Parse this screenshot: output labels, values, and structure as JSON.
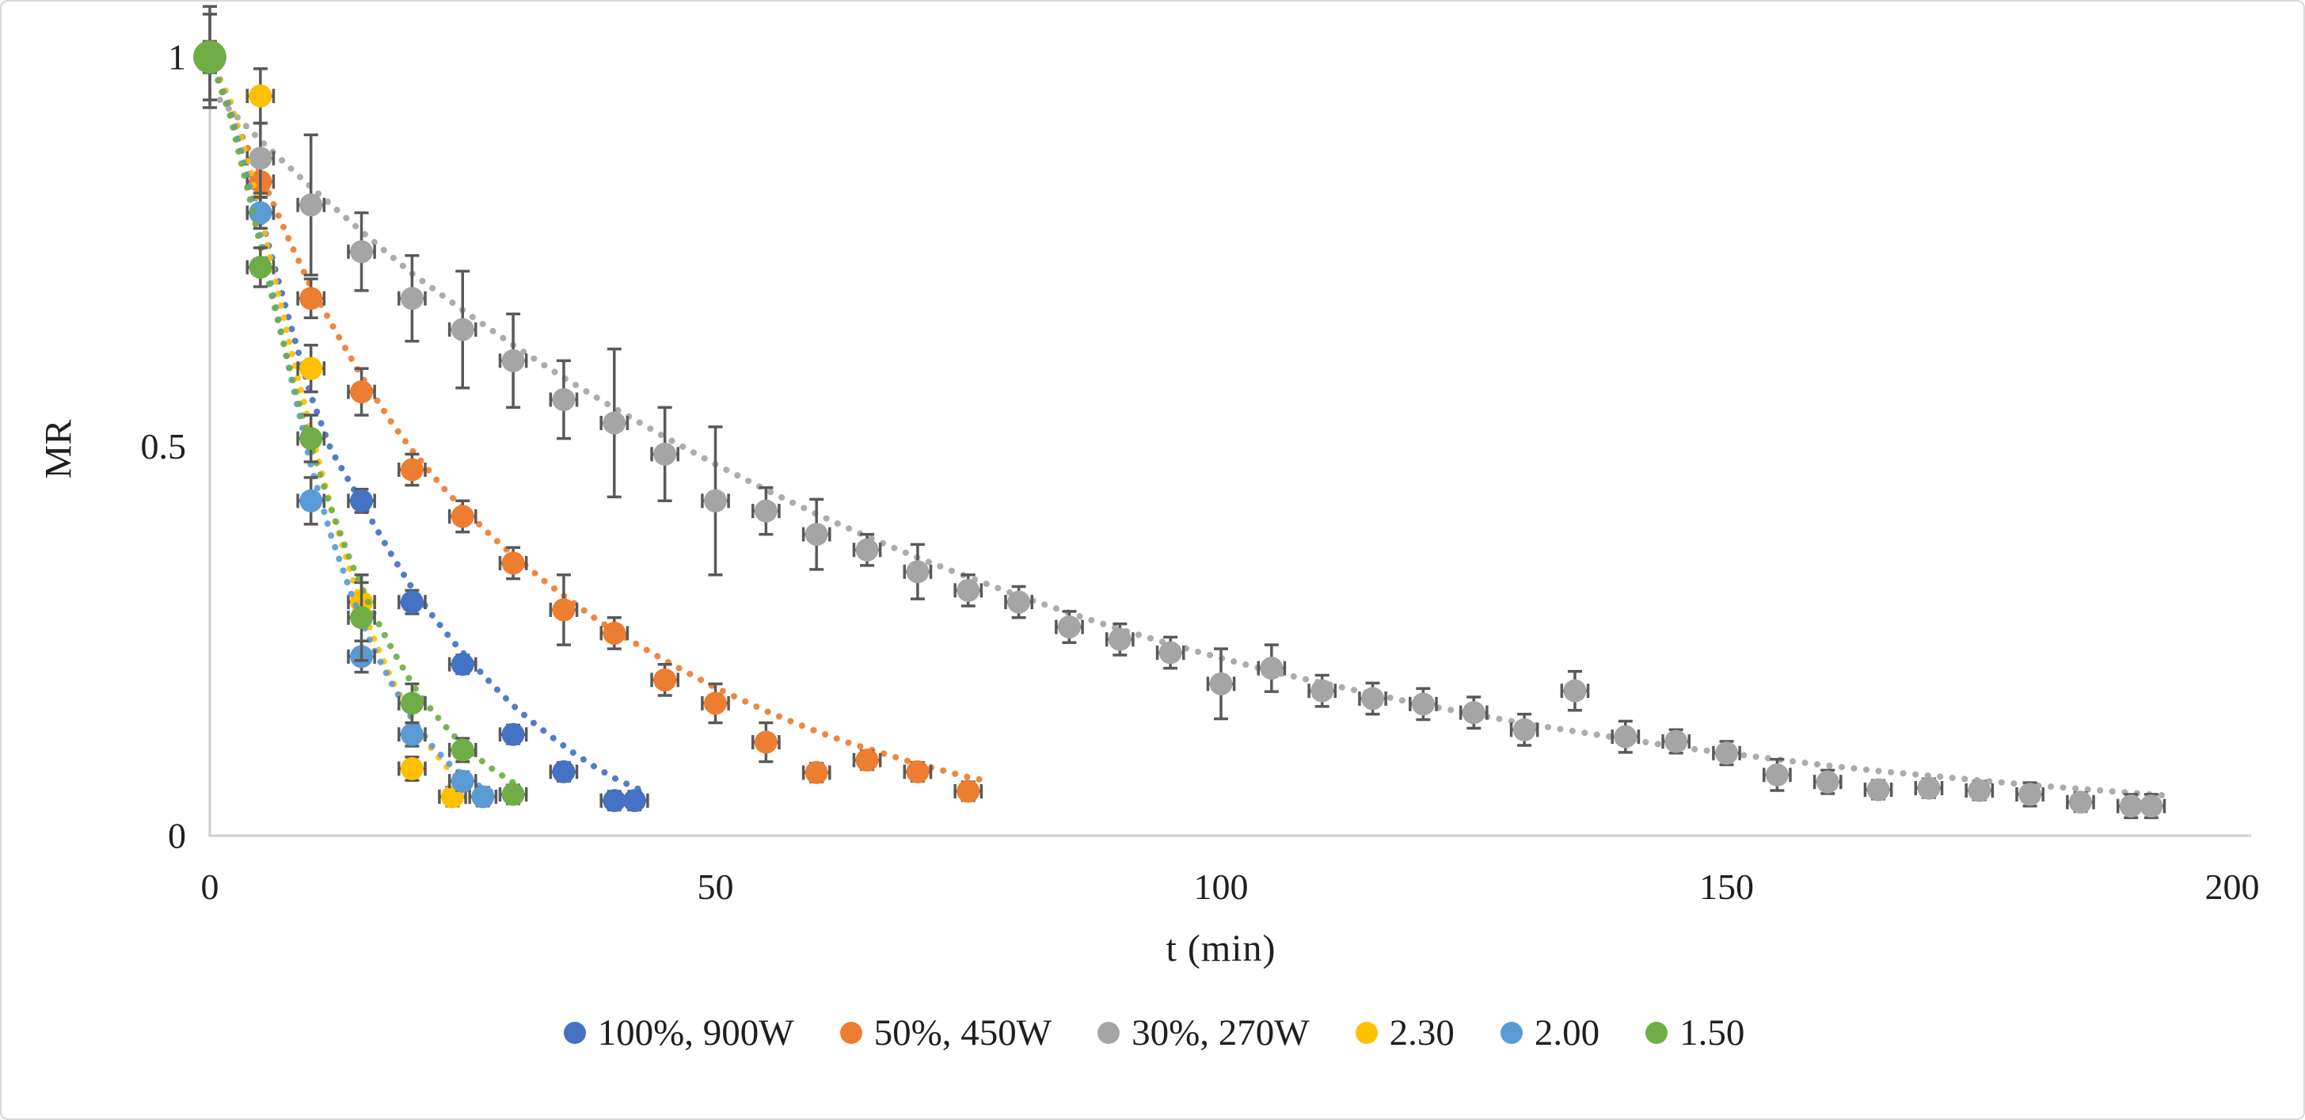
{
  "ui": {
    "x_axis_title": "t (min)",
    "y_axis_title": "MR"
  },
  "chart_data": {
    "type": "scatter",
    "title": "",
    "xlabel": "t (min)",
    "ylabel": "MR",
    "xlim": [
      0,
      200
    ],
    "ylim": [
      0,
      1
    ],
    "x_ticks": [
      {
        "value": 0,
        "label": "0"
      },
      {
        "value": 50,
        "label": "50"
      },
      {
        "value": 100,
        "label": "100"
      },
      {
        "value": 150,
        "label": "150"
      },
      {
        "value": 200,
        "label": "200"
      }
    ],
    "y_ticks": [
      {
        "value": 0,
        "label": "0"
      },
      {
        "value": 0.5,
        "label": "0.5"
      },
      {
        "value": 1,
        "label": "1"
      }
    ],
    "grid": false,
    "legend_position": "bottom-center",
    "axis_color": "#cfcfcf",
    "error_bar_color": "#595959",
    "x_error_minutes": 1.3,
    "series": [
      {
        "name": "100%, 900W",
        "color": "#4472C4",
        "marker": "circle",
        "points": [
          [
            0,
            1,
            0.02
          ],
          [
            5,
            0.8,
            0.02
          ],
          [
            15,
            0.43,
            0.015
          ],
          [
            20,
            0.3,
            0.015
          ],
          [
            25,
            0.22,
            0.012
          ],
          [
            30,
            0.13,
            0.012
          ],
          [
            35,
            0.082,
            0.012
          ],
          [
            40,
            0.045,
            0.012
          ],
          [
            42,
            0.045,
            0.012
          ]
        ],
        "trend": [
          [
            0,
            1
          ],
          [
            2,
            0.93
          ],
          [
            4,
            0.845
          ],
          [
            6,
            0.75
          ],
          [
            8,
            0.655
          ],
          [
            10,
            0.565
          ],
          [
            12,
            0.495
          ],
          [
            14,
            0.45
          ],
          [
            16,
            0.405
          ],
          [
            18,
            0.36
          ],
          [
            20,
            0.318
          ],
          [
            22,
            0.283
          ],
          [
            24,
            0.25
          ],
          [
            26,
            0.221
          ],
          [
            28,
            0.193
          ],
          [
            30,
            0.167
          ],
          [
            32,
            0.145
          ],
          [
            34,
            0.125
          ],
          [
            36,
            0.106
          ],
          [
            38,
            0.089
          ],
          [
            40,
            0.074
          ],
          [
            42,
            0.062
          ],
          [
            43,
            0.057
          ]
        ]
      },
      {
        "name": "50%, 450W",
        "color": "#ED7D31",
        "marker": "circle",
        "points": [
          [
            0,
            1,
            0.02
          ],
          [
            5,
            0.84,
            0.02
          ],
          [
            10,
            0.69,
            0.025
          ],
          [
            15,
            0.57,
            0.03
          ],
          [
            20,
            0.47,
            0.02
          ],
          [
            25,
            0.41,
            0.02
          ],
          [
            30,
            0.35,
            0.02
          ],
          [
            35,
            0.29,
            0.045
          ],
          [
            40,
            0.26,
            0.02
          ],
          [
            45,
            0.2,
            0.02
          ],
          [
            50,
            0.17,
            0.025
          ],
          [
            55,
            0.12,
            0.025
          ],
          [
            60,
            0.081,
            0.012
          ],
          [
            65,
            0.097,
            0.012
          ],
          [
            70,
            0.082,
            0.012
          ],
          [
            75,
            0.057,
            0.012
          ]
        ],
        "trend": [
          [
            0,
            1
          ],
          [
            2,
            0.93
          ],
          [
            5,
            0.85
          ],
          [
            8,
            0.76
          ],
          [
            10,
            0.705
          ],
          [
            13,
            0.635
          ],
          [
            15,
            0.59
          ],
          [
            18,
            0.53
          ],
          [
            20,
            0.495
          ],
          [
            23,
            0.448
          ],
          [
            25,
            0.42
          ],
          [
            28,
            0.383
          ],
          [
            30,
            0.36
          ],
          [
            33,
            0.328
          ],
          [
            35,
            0.308
          ],
          [
            38,
            0.28
          ],
          [
            40,
            0.263
          ],
          [
            43,
            0.24
          ],
          [
            45,
            0.225
          ],
          [
            48,
            0.204
          ],
          [
            50,
            0.19
          ],
          [
            53,
            0.172
          ],
          [
            55,
            0.16
          ],
          [
            58,
            0.144
          ],
          [
            60,
            0.134
          ],
          [
            63,
            0.12
          ],
          [
            65,
            0.112
          ],
          [
            68,
            0.1
          ],
          [
            70,
            0.092
          ],
          [
            73,
            0.082
          ],
          [
            75,
            0.075
          ],
          [
            77,
            0.07
          ]
        ]
      },
      {
        "name": "30%, 270W",
        "color": "#A5A5A5",
        "marker": "circle",
        "points": [
          [
            0,
            1,
            0.065
          ],
          [
            5,
            0.87,
            0.045
          ],
          [
            10,
            0.81,
            0.09
          ],
          [
            15,
            0.75,
            0.05
          ],
          [
            20,
            0.69,
            0.055
          ],
          [
            25,
            0.65,
            0.075
          ],
          [
            30,
            0.61,
            0.06
          ],
          [
            35,
            0.56,
            0.05
          ],
          [
            40,
            0.53,
            0.095
          ],
          [
            45,
            0.49,
            0.06
          ],
          [
            50,
            0.43,
            0.095
          ],
          [
            55,
            0.417,
            0.03
          ],
          [
            60,
            0.387,
            0.045
          ],
          [
            65,
            0.367,
            0.02
          ],
          [
            70,
            0.339,
            0.035
          ],
          [
            75,
            0.315,
            0.02
          ],
          [
            80,
            0.3,
            0.02
          ],
          [
            85,
            0.268,
            0.02
          ],
          [
            90,
            0.252,
            0.02
          ],
          [
            95,
            0.235,
            0.02
          ],
          [
            100,
            0.195,
            0.045
          ],
          [
            105,
            0.215,
            0.03
          ],
          [
            110,
            0.186,
            0.02
          ],
          [
            115,
            0.176,
            0.02
          ],
          [
            120,
            0.169,
            0.02
          ],
          [
            125,
            0.158,
            0.02
          ],
          [
            130,
            0.136,
            0.02
          ],
          [
            135,
            0.186,
            0.025
          ],
          [
            140,
            0.127,
            0.02
          ],
          [
            145,
            0.121,
            0.015
          ],
          [
            150,
            0.106,
            0.015
          ],
          [
            155,
            0.078,
            0.02
          ],
          [
            160,
            0.069,
            0.015
          ],
          [
            165,
            0.059,
            0.012
          ],
          [
            170,
            0.061,
            0.012
          ],
          [
            175,
            0.058,
            0.012
          ],
          [
            180,
            0.053,
            0.015
          ],
          [
            185,
            0.043,
            0.012
          ],
          [
            190,
            0.038,
            0.015
          ],
          [
            192,
            0.038,
            0.015
          ]
        ],
        "trend": [
          [
            1,
            0.945
          ],
          [
            5,
            0.893
          ],
          [
            10,
            0.833
          ],
          [
            15,
            0.776
          ],
          [
            20,
            0.722
          ],
          [
            25,
            0.675
          ],
          [
            30,
            0.63
          ],
          [
            35,
            0.588
          ],
          [
            40,
            0.549
          ],
          [
            45,
            0.512
          ],
          [
            50,
            0.477
          ],
          [
            55,
            0.444
          ],
          [
            60,
            0.413
          ],
          [
            65,
            0.384
          ],
          [
            70,
            0.357
          ],
          [
            75,
            0.332
          ],
          [
            80,
            0.308
          ],
          [
            85,
            0.286
          ],
          [
            90,
            0.265
          ],
          [
            95,
            0.246
          ],
          [
            100,
            0.228
          ],
          [
            105,
            0.211
          ],
          [
            110,
            0.196
          ],
          [
            115,
            0.182
          ],
          [
            120,
            0.168
          ],
          [
            125,
            0.156
          ],
          [
            130,
            0.144
          ],
          [
            135,
            0.134
          ],
          [
            140,
            0.124
          ],
          [
            145,
            0.114
          ],
          [
            150,
            0.106
          ],
          [
            155,
            0.098
          ],
          [
            160,
            0.09
          ],
          [
            165,
            0.083
          ],
          [
            170,
            0.077
          ],
          [
            175,
            0.071
          ],
          [
            180,
            0.065
          ],
          [
            185,
            0.06
          ],
          [
            190,
            0.055
          ],
          [
            194,
            0.051
          ]
        ]
      },
      {
        "name": "2.30",
        "color": "#FFC000",
        "marker": "circle",
        "points": [
          [
            0,
            1,
            0.02
          ],
          [
            5,
            0.95,
            0.035
          ],
          [
            10,
            0.6,
            0.03
          ],
          [
            15,
            0.3,
            0.025
          ],
          [
            20,
            0.086,
            0.015
          ],
          [
            24,
            0.05,
            0.012
          ]
        ],
        "trend": [
          [
            0,
            1
          ],
          [
            2,
            0.945
          ],
          [
            4,
            0.855
          ],
          [
            6,
            0.74
          ],
          [
            8,
            0.625
          ],
          [
            10,
            0.52
          ],
          [
            12,
            0.42
          ],
          [
            14,
            0.335
          ],
          [
            16,
            0.26
          ],
          [
            18,
            0.2
          ],
          [
            20,
            0.15
          ],
          [
            22,
            0.11
          ],
          [
            24,
            0.08
          ],
          [
            26,
            0.06
          ]
        ]
      },
      {
        "name": "2.00",
        "color": "#5B9BD5",
        "marker": "circle",
        "points": [
          [
            0,
            1,
            0.02
          ],
          [
            5,
            0.8,
            0.02
          ],
          [
            10,
            0.43,
            0.03
          ],
          [
            15,
            0.23,
            0.02
          ],
          [
            20,
            0.13,
            0.015
          ],
          [
            25,
            0.07,
            0.012
          ],
          [
            27,
            0.05,
            0.012
          ]
        ],
        "trend": [
          [
            0,
            1
          ],
          [
            2,
            0.935
          ],
          [
            4,
            0.83
          ],
          [
            6,
            0.71
          ],
          [
            8,
            0.59
          ],
          [
            10,
            0.475
          ],
          [
            12,
            0.385
          ],
          [
            14,
            0.31
          ],
          [
            16,
            0.245
          ],
          [
            18,
            0.195
          ],
          [
            20,
            0.15
          ],
          [
            22,
            0.115
          ],
          [
            24,
            0.088
          ],
          [
            26,
            0.068
          ],
          [
            28,
            0.055
          ]
        ]
      },
      {
        "name": "1.50",
        "color": "#70AD47",
        "marker": "circle",
        "points": [
          [
            0,
            1,
            0.055,
            21
          ],
          [
            5,
            0.73,
            0.025
          ],
          [
            10,
            0.51,
            0.03
          ],
          [
            15,
            0.28,
            0.055
          ],
          [
            20,
            0.17,
            0.025
          ],
          [
            25,
            0.11,
            0.015
          ],
          [
            30,
            0.053,
            0.012
          ]
        ],
        "trend": [
          [
            0,
            1
          ],
          [
            2,
            0.925
          ],
          [
            4,
            0.815
          ],
          [
            6,
            0.7
          ],
          [
            8,
            0.595
          ],
          [
            10,
            0.5
          ],
          [
            12,
            0.42
          ],
          [
            14,
            0.35
          ],
          [
            16,
            0.29
          ],
          [
            18,
            0.24
          ],
          [
            20,
            0.195
          ],
          [
            22,
            0.16
          ],
          [
            24,
            0.13
          ],
          [
            26,
            0.105
          ],
          [
            28,
            0.085
          ],
          [
            30,
            0.068
          ],
          [
            31,
            0.062
          ]
        ]
      }
    ],
    "legend": [
      "100%, 900W",
      "50%, 450W",
      "30%, 270W",
      "2.30",
      "2.00",
      "1.50"
    ]
  }
}
